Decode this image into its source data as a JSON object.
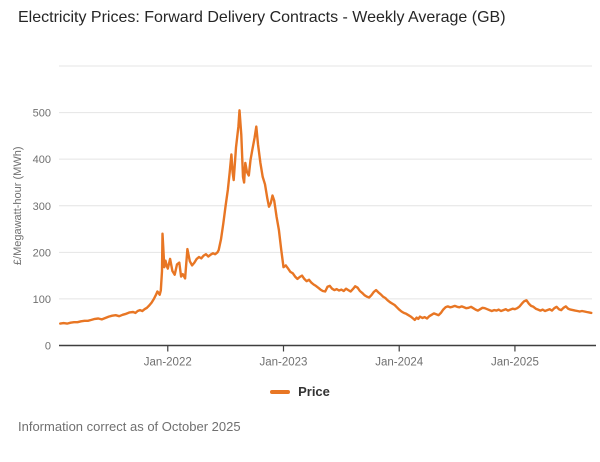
{
  "header": {
    "title": "Electricity Prices: Forward Delivery Contracts - Weekly Average (GB)"
  },
  "footer": {
    "note": "Information correct as of October 2025"
  },
  "legend": {
    "items": [
      {
        "label": "Price",
        "color": "#e87624"
      }
    ]
  },
  "colors": {
    "series_orange": "#e87624",
    "grid": "#e4e4e4",
    "axis_line": "#3f3f3f",
    "axis_text": "#707070",
    "title_text": "#262626",
    "footnote_text": "#707070"
  },
  "chart_data": {
    "type": "line",
    "title": "Electricity Prices: Forward Delivery Contracts - Weekly Average (GB)",
    "xlabel": "",
    "ylabel": "£/Megawatt-hour (MWh)",
    "grid": true,
    "legend_position": "bottom",
    "xlim": [
      2021.06,
      2025.666
    ],
    "ylim": [
      0,
      600
    ],
    "y_ticks": [
      0,
      100,
      200,
      300,
      400,
      500
    ],
    "x_ticks": [
      {
        "value": 2022,
        "label": "Jan-2022"
      },
      {
        "value": 2023,
        "label": "Jan-2023"
      },
      {
        "value": 2024,
        "label": "Jan-2024"
      },
      {
        "value": 2025,
        "label": "Jan-2025"
      }
    ],
    "series": [
      {
        "name": "Price",
        "color": "#e87624",
        "points": [
          [
            2021.07,
            47
          ],
          [
            2021.1,
            48
          ],
          [
            2021.13,
            47
          ],
          [
            2021.16,
            49
          ],
          [
            2021.19,
            50
          ],
          [
            2021.22,
            50
          ],
          [
            2021.25,
            52
          ],
          [
            2021.28,
            53
          ],
          [
            2021.31,
            53
          ],
          [
            2021.34,
            55
          ],
          [
            2021.37,
            57
          ],
          [
            2021.4,
            58
          ],
          [
            2021.43,
            56
          ],
          [
            2021.46,
            59
          ],
          [
            2021.49,
            62
          ],
          [
            2021.52,
            64
          ],
          [
            2021.55,
            65
          ],
          [
            2021.58,
            63
          ],
          [
            2021.61,
            66
          ],
          [
            2021.64,
            68
          ],
          [
            2021.67,
            71
          ],
          [
            2021.7,
            72
          ],
          [
            2021.72,
            70
          ],
          [
            2021.74,
            74
          ],
          [
            2021.76,
            76
          ],
          [
            2021.78,
            74
          ],
          [
            2021.8,
            78
          ],
          [
            2021.82,
            81
          ],
          [
            2021.84,
            86
          ],
          [
            2021.86,
            92
          ],
          [
            2021.88,
            100
          ],
          [
            2021.9,
            110
          ],
          [
            2021.91,
            116
          ],
          [
            2021.92,
            113
          ],
          [
            2021.93,
            109
          ],
          [
            2021.94,
            118
          ],
          [
            2021.95,
            160
          ],
          [
            2021.954,
            240
          ],
          [
            2021.962,
            205
          ],
          [
            2021.97,
            168
          ],
          [
            2021.98,
            182
          ],
          [
            2021.99,
            172
          ],
          [
            2022.0,
            165
          ],
          [
            2022.02,
            186
          ],
          [
            2022.04,
            160
          ],
          [
            2022.06,
            152
          ],
          [
            2022.08,
            174
          ],
          [
            2022.1,
            178
          ],
          [
            2022.115,
            148
          ],
          [
            2022.13,
            153
          ],
          [
            2022.15,
            144
          ],
          [
            2022.17,
            207
          ],
          [
            2022.19,
            181
          ],
          [
            2022.21,
            172
          ],
          [
            2022.23,
            178
          ],
          [
            2022.25,
            186
          ],
          [
            2022.27,
            190
          ],
          [
            2022.29,
            187
          ],
          [
            2022.31,
            193
          ],
          [
            2022.33,
            196
          ],
          [
            2022.35,
            191
          ],
          [
            2022.37,
            195
          ],
          [
            2022.39,
            198
          ],
          [
            2022.41,
            196
          ],
          [
            2022.43,
            200
          ],
          [
            2022.44,
            205
          ],
          [
            2022.46,
            228
          ],
          [
            2022.48,
            262
          ],
          [
            2022.5,
            300
          ],
          [
            2022.52,
            335
          ],
          [
            2022.535,
            372
          ],
          [
            2022.55,
            410
          ],
          [
            2022.56,
            372
          ],
          [
            2022.57,
            355
          ],
          [
            2022.59,
            425
          ],
          [
            2022.61,
            470
          ],
          [
            2022.62,
            505
          ],
          [
            2022.635,
            452
          ],
          [
            2022.65,
            362
          ],
          [
            2022.66,
            350
          ],
          [
            2022.67,
            392
          ],
          [
            2022.685,
            372
          ],
          [
            2022.7,
            365
          ],
          [
            2022.715,
            398
          ],
          [
            2022.73,
            420
          ],
          [
            2022.75,
            446
          ],
          [
            2022.765,
            470
          ],
          [
            2022.78,
            432
          ],
          [
            2022.8,
            392
          ],
          [
            2022.82,
            362
          ],
          [
            2022.84,
            346
          ],
          [
            2022.86,
            316
          ],
          [
            2022.875,
            298
          ],
          [
            2022.89,
            306
          ],
          [
            2022.905,
            322
          ],
          [
            2022.92,
            311
          ],
          [
            2022.94,
            276
          ],
          [
            2022.96,
            248
          ],
          [
            2022.98,
            206
          ],
          [
            2023.0,
            168
          ],
          [
            2023.02,
            172
          ],
          [
            2023.04,
            165
          ],
          [
            2023.06,
            158
          ],
          [
            2023.08,
            155
          ],
          [
            2023.1,
            148
          ],
          [
            2023.12,
            143
          ],
          [
            2023.14,
            147
          ],
          [
            2023.16,
            150
          ],
          [
            2023.18,
            143
          ],
          [
            2023.2,
            138
          ],
          [
            2023.22,
            141
          ],
          [
            2023.24,
            135
          ],
          [
            2023.26,
            131
          ],
          [
            2023.28,
            128
          ],
          [
            2023.3,
            124
          ],
          [
            2023.32,
            120
          ],
          [
            2023.34,
            117
          ],
          [
            2023.36,
            116
          ],
          [
            2023.38,
            126
          ],
          [
            2023.4,
            128
          ],
          [
            2023.42,
            122
          ],
          [
            2023.44,
            119
          ],
          [
            2023.46,
            121
          ],
          [
            2023.48,
            118
          ],
          [
            2023.5,
            120
          ],
          [
            2023.52,
            117
          ],
          [
            2023.54,
            122
          ],
          [
            2023.56,
            119
          ],
          [
            2023.58,
            116
          ],
          [
            2023.6,
            121
          ],
          [
            2023.62,
            127
          ],
          [
            2023.64,
            124
          ],
          [
            2023.66,
            117
          ],
          [
            2023.68,
            113
          ],
          [
            2023.7,
            108
          ],
          [
            2023.72,
            105
          ],
          [
            2023.74,
            103
          ],
          [
            2023.76,
            108
          ],
          [
            2023.78,
            115
          ],
          [
            2023.8,
            119
          ],
          [
            2023.82,
            114
          ],
          [
            2023.84,
            110
          ],
          [
            2023.86,
            105
          ],
          [
            2023.88,
            102
          ],
          [
            2023.9,
            97
          ],
          [
            2023.92,
            93
          ],
          [
            2023.94,
            90
          ],
          [
            2023.96,
            87
          ],
          [
            2023.98,
            82
          ],
          [
            2024.0,
            77
          ],
          [
            2024.02,
            73
          ],
          [
            2024.04,
            70
          ],
          [
            2024.06,
            68
          ],
          [
            2024.08,
            65
          ],
          [
            2024.1,
            62
          ],
          [
            2024.12,
            58
          ],
          [
            2024.135,
            55
          ],
          [
            2024.15,
            60
          ],
          [
            2024.165,
            57
          ],
          [
            2024.18,
            62
          ],
          [
            2024.2,
            59
          ],
          [
            2024.22,
            61
          ],
          [
            2024.24,
            58
          ],
          [
            2024.26,
            63
          ],
          [
            2024.28,
            66
          ],
          [
            2024.3,
            69
          ],
          [
            2024.32,
            67
          ],
          [
            2024.34,
            65
          ],
          [
            2024.36,
            70
          ],
          [
            2024.38,
            77
          ],
          [
            2024.4,
            82
          ],
          [
            2024.42,
            84
          ],
          [
            2024.44,
            82
          ],
          [
            2024.46,
            83
          ],
          [
            2024.48,
            85
          ],
          [
            2024.5,
            83
          ],
          [
            2024.52,
            82
          ],
          [
            2024.54,
            84
          ],
          [
            2024.56,
            82
          ],
          [
            2024.58,
            80
          ],
          [
            2024.6,
            81
          ],
          [
            2024.62,
            83
          ],
          [
            2024.64,
            80
          ],
          [
            2024.66,
            77
          ],
          [
            2024.68,
            75
          ],
          [
            2024.7,
            78
          ],
          [
            2024.72,
            81
          ],
          [
            2024.74,
            80
          ],
          [
            2024.76,
            78
          ],
          [
            2024.78,
            76
          ],
          [
            2024.8,
            74
          ],
          [
            2024.82,
            76
          ],
          [
            2024.84,
            75
          ],
          [
            2024.86,
            77
          ],
          [
            2024.88,
            74
          ],
          [
            2024.9,
            76
          ],
          [
            2024.92,
            78
          ],
          [
            2024.94,
            75
          ],
          [
            2024.96,
            77
          ],
          [
            2024.98,
            79
          ],
          [
            2025.0,
            78
          ],
          [
            2025.02,
            80
          ],
          [
            2025.04,
            84
          ],
          [
            2025.06,
            90
          ],
          [
            2025.08,
            95
          ],
          [
            2025.1,
            97
          ],
          [
            2025.12,
            90
          ],
          [
            2025.14,
            85
          ],
          [
            2025.16,
            83
          ],
          [
            2025.18,
            79
          ],
          [
            2025.2,
            77
          ],
          [
            2025.22,
            75
          ],
          [
            2025.24,
            77
          ],
          [
            2025.26,
            74
          ],
          [
            2025.28,
            76
          ],
          [
            2025.3,
            78
          ],
          [
            2025.32,
            75
          ],
          [
            2025.34,
            80
          ],
          [
            2025.36,
            83
          ],
          [
            2025.38,
            78
          ],
          [
            2025.4,
            76
          ],
          [
            2025.42,
            81
          ],
          [
            2025.44,
            84
          ],
          [
            2025.46,
            79
          ],
          [
            2025.48,
            77
          ],
          [
            2025.5,
            76
          ],
          [
            2025.52,
            75
          ],
          [
            2025.54,
            74
          ],
          [
            2025.56,
            73
          ],
          [
            2025.58,
            74
          ],
          [
            2025.6,
            73
          ],
          [
            2025.62,
            72
          ],
          [
            2025.64,
            71
          ],
          [
            2025.66,
            70
          ]
        ]
      }
    ]
  }
}
